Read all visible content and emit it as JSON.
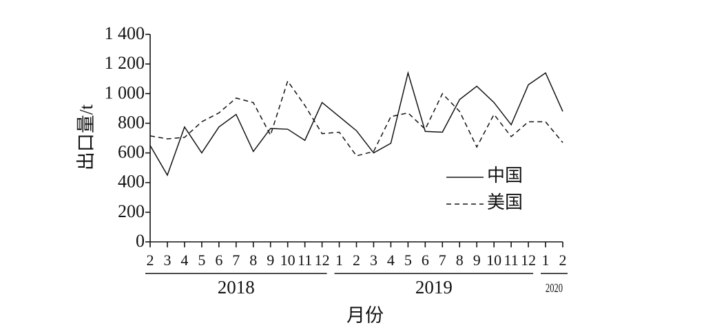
{
  "chart_data": {
    "type": "line",
    "x_label": "月份",
    "y_label": "出口量/t",
    "categories": [
      "2",
      "3",
      "4",
      "5",
      "6",
      "7",
      "8",
      "9",
      "10",
      "11",
      "12",
      "1",
      "2",
      "3",
      "4",
      "5",
      "6",
      "7",
      "8",
      "9",
      "10",
      "11",
      "12",
      "1",
      "2"
    ],
    "x_groups": [
      "2018",
      "2019",
      "2020"
    ],
    "series": [
      {
        "name": "中国",
        "color": "#111111",
        "dash": "none",
        "values": [
          650,
          450,
          775,
          600,
          775,
          860,
          610,
          765,
          760,
          685,
          940,
          845,
          750,
          600,
          665,
          1140,
          745,
          740,
          960,
          1050,
          940,
          790,
          1060,
          1140,
          880
        ]
      },
      {
        "name": "美国",
        "color": "#111111",
        "dash": "7,5",
        "values": [
          715,
          695,
          705,
          810,
          870,
          970,
          940,
          720,
          1085,
          920,
          730,
          740,
          580,
          610,
          845,
          870,
          760,
          1000,
          880,
          640,
          860,
          710,
          810,
          810,
          670
        ]
      }
    ],
    "ylim": [
      0,
      1400
    ],
    "yticks": [
      0,
      200,
      400,
      600,
      800,
      {
        "value": 1000,
        "label": "1 000"
      },
      {
        "value": 1200,
        "label": "1 200"
      },
      {
        "value": 1400,
        "label": "1 400"
      }
    ],
    "grid": false
  }
}
